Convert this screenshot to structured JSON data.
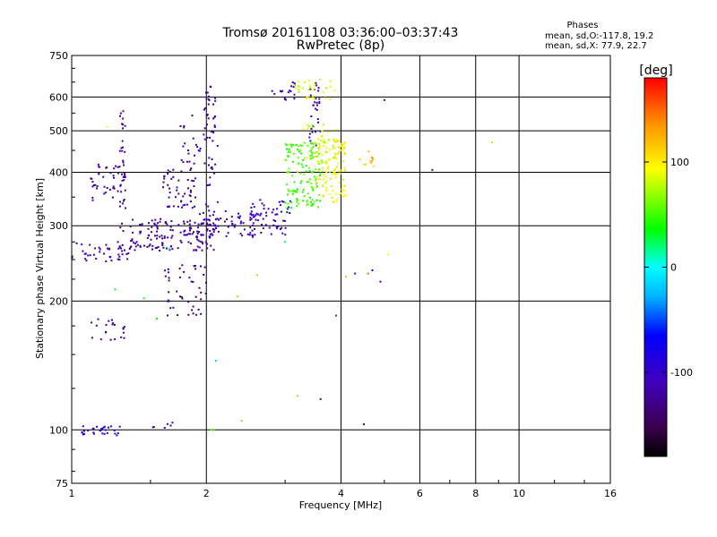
{
  "header": {
    "title_line1": "Tromsø 20161108 03:36:00–03:37:43",
    "title_line2": "RwPretec (8p)",
    "phases_title": "Phases",
    "phases_o": "mean, sd,O:-117.8, 19.2",
    "phases_x": "mean, sd,X:  77.9, 22.7"
  },
  "chart_data": {
    "type": "scatter",
    "xlabel": "Frequency [MHz]",
    "ylabel": "Stationary phase Virtual Height [km]",
    "x_scale": "log",
    "y_scale": "log",
    "xlim": [
      1,
      16
    ],
    "ylim": [
      75,
      750
    ],
    "x_ticks": [
      1,
      2,
      4,
      6,
      8,
      10,
      16
    ],
    "x_tick_labels": [
      "1",
      "2",
      "4",
      "6",
      "8",
      "10",
      "16"
    ],
    "y_ticks": [
      75,
      100,
      200,
      300,
      400,
      500,
      600,
      750
    ],
    "y_tick_labels": [
      "75",
      "100",
      "200",
      "300",
      "400",
      "500",
      "600",
      "750"
    ],
    "grid": true,
    "colorbar": {
      "label": "[deg]",
      "range": [
        -180,
        180
      ],
      "ticks": [
        -100,
        0,
        100
      ],
      "tick_labels": [
        "-100",
        "0",
        "100"
      ],
      "colors": [
        "#000000",
        "#3c0050",
        "#4000c0",
        "#0000ff",
        "#00b0ff",
        "#00ffff",
        "#00ff00",
        "#ffff00",
        "#ff9000",
        "#ff0000"
      ]
    },
    "clusters": [
      {
        "x": [
          1.0,
          1.35
        ],
        "y": [
          245,
          275
        ],
        "phase": -112,
        "n": 45
      },
      {
        "x": [
          1.35,
          2.1
        ],
        "y": [
          262,
          312
        ],
        "phase": -120,
        "n": 150
      },
      {
        "x": [
          1.9,
          2.6
        ],
        "y": [
          282,
          325
        ],
        "phase": -116,
        "n": 60
      },
      {
        "x": [
          2.5,
          3.1
        ],
        "y": [
          285,
          345
        ],
        "phase": -105,
        "n": 60
      },
      {
        "x": [
          1.28,
          1.32
        ],
        "y": [
          290,
          570
        ],
        "phase": -118,
        "n": 40
      },
      {
        "x": [
          1.1,
          1.28
        ],
        "y": [
          340,
          420
        ],
        "phase": -120,
        "n": 35
      },
      {
        "x": [
          1.6,
          1.9
        ],
        "y": [
          330,
          410
        ],
        "phase": -125,
        "n": 50
      },
      {
        "x": [
          1.97,
          2.12
        ],
        "y": [
          300,
          640
        ],
        "phase": -120,
        "n": 55
      },
      {
        "x": [
          1.75,
          1.95
        ],
        "y": [
          410,
          550
        ],
        "phase": -122,
        "n": 20
      },
      {
        "x": [
          1.6,
          2.0
        ],
        "y": [
          185,
          245
        ],
        "phase": -128,
        "n": 45
      },
      {
        "x": [
          1.08,
          1.32
        ],
        "y": [
          162,
          182
        ],
        "phase": -122,
        "n": 22
      },
      {
        "x": [
          1.05,
          1.3
        ],
        "y": [
          97,
          102
        ],
        "phase": -95,
        "n": 30
      },
      {
        "x": [
          1.5,
          1.7
        ],
        "y": [
          100,
          105
        ],
        "phase": -118,
        "n": 6
      },
      {
        "x": [
          2.8,
          3.2
        ],
        "y": [
          590,
          650
        ],
        "phase": -105,
        "n": 18
      },
      {
        "x": [
          3.4,
          3.6
        ],
        "y": [
          460,
          660
        ],
        "phase": -110,
        "n": 30
      },
      {
        "x": [
          3.0,
          3.6
        ],
        "y": [
          330,
          470
        ],
        "phase": 48,
        "n": 130
      },
      {
        "x": [
          3.5,
          4.1
        ],
        "y": [
          340,
          480
        ],
        "phase": 95,
        "n": 120
      },
      {
        "x": [
          3.2,
          3.9
        ],
        "y": [
          420,
          520
        ],
        "phase": 80,
        "n": 35
      },
      {
        "x": [
          3.1,
          3.9
        ],
        "y": [
          590,
          660
        ],
        "phase": 85,
        "n": 30
      },
      {
        "x": [
          4.4,
          4.8
        ],
        "y": [
          410,
          450
        ],
        "phase": 118,
        "n": 12
      }
    ],
    "scattered_points": [
      {
        "x": 1.2,
        "y": 510,
        "phase": 95
      },
      {
        "x": 1.25,
        "y": 213,
        "phase": 30
      },
      {
        "x": 1.45,
        "y": 203,
        "phase": 35
      },
      {
        "x": 1.55,
        "y": 182,
        "phase": 40
      },
      {
        "x": 1.65,
        "y": 265,
        "phase": 10
      },
      {
        "x": 2.05,
        "y": 100,
        "phase": 60
      },
      {
        "x": 2.08,
        "y": 100,
        "phase": 50
      },
      {
        "x": 2.1,
        "y": 145,
        "phase": -20
      },
      {
        "x": 2.35,
        "y": 205,
        "phase": 60
      },
      {
        "x": 2.4,
        "y": 105,
        "phase": 120
      },
      {
        "x": 2.6,
        "y": 230,
        "phase": 120
      },
      {
        "x": 3.0,
        "y": 275,
        "phase": 20
      },
      {
        "x": 3.2,
        "y": 120,
        "phase": 60
      },
      {
        "x": 3.6,
        "y": 118,
        "phase": -60
      },
      {
        "x": 3.9,
        "y": 185,
        "phase": -50
      },
      {
        "x": 4.1,
        "y": 228,
        "phase": 120
      },
      {
        "x": 4.3,
        "y": 232,
        "phase": -120
      },
      {
        "x": 4.5,
        "y": 103,
        "phase": -90
      },
      {
        "x": 4.6,
        "y": 232,
        "phase": 150
      },
      {
        "x": 4.7,
        "y": 236,
        "phase": -70
      },
      {
        "x": 4.9,
        "y": 222,
        "phase": -100
      },
      {
        "x": 5.0,
        "y": 590,
        "phase": -100
      },
      {
        "x": 5.1,
        "y": 257,
        "phase": 90
      },
      {
        "x": 6.4,
        "y": 405,
        "phase": -115
      },
      {
        "x": 8.7,
        "y": 470,
        "phase": 110
      }
    ]
  }
}
